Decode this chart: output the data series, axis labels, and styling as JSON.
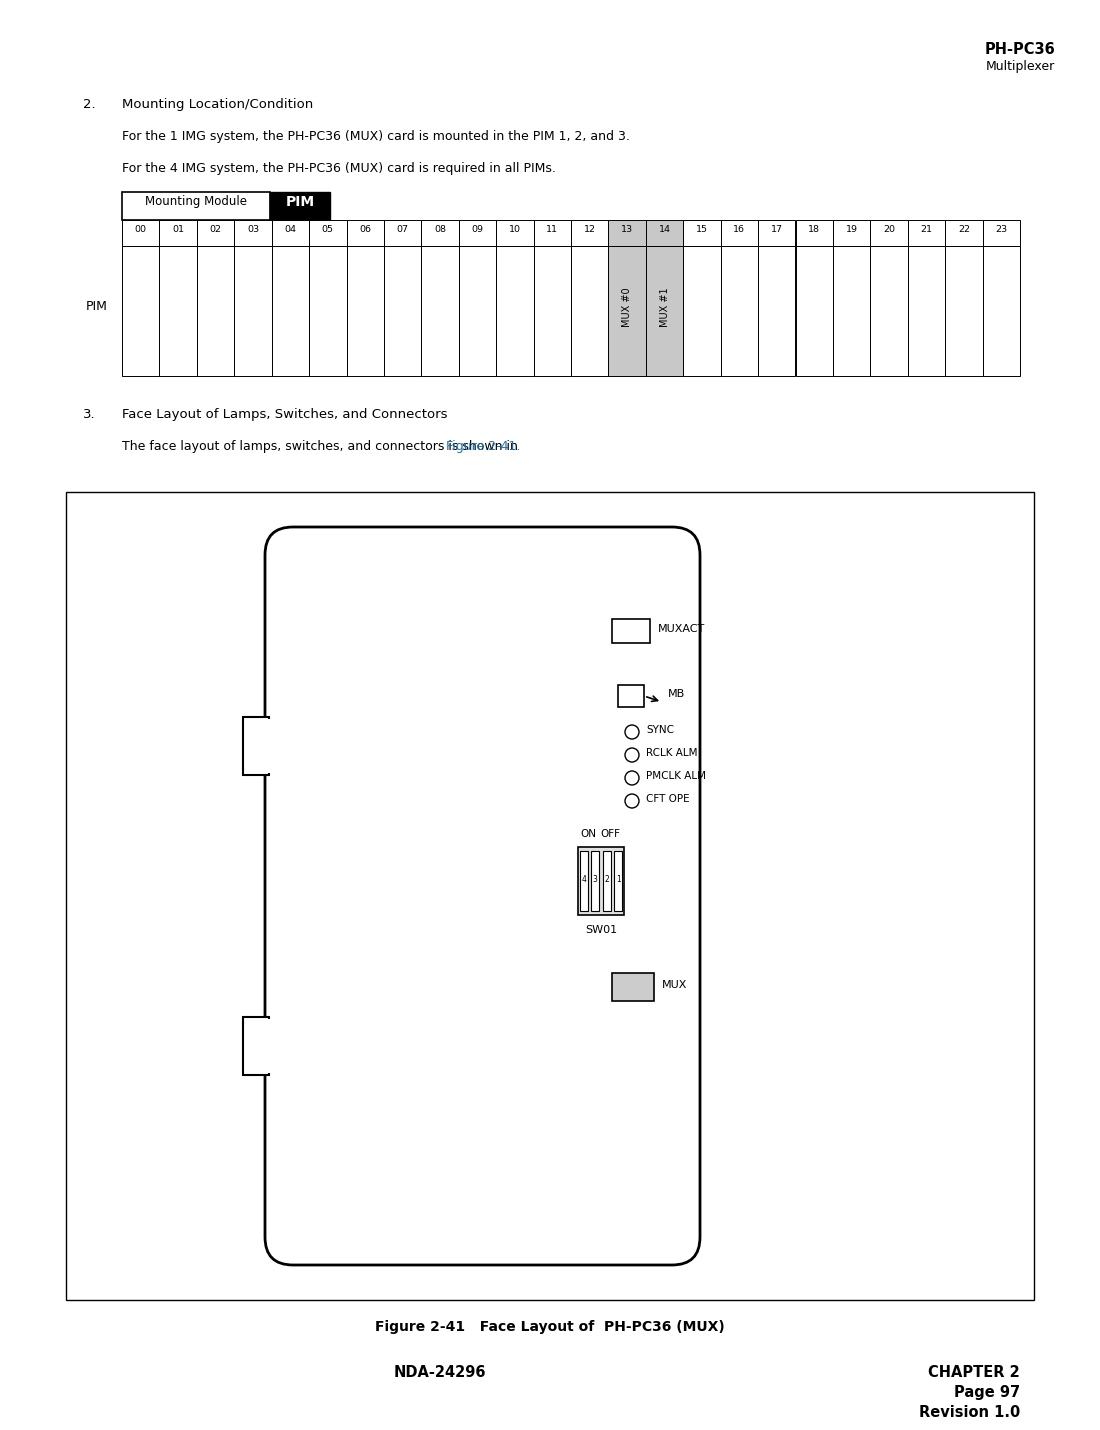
{
  "page_title_bold": "PH-PC36",
  "page_title_sub": "Multiplexer",
  "section2_heading": "2.    Mounting Location/Condition",
  "section2_para1": "For the 1 IMG system, the PH-PC36 (MUX) card is mounted in the PIM 1, 2, and 3.",
  "section2_para2": "For the 4 IMG system, the PH-PC36 (MUX) card is required in all PIMs.",
  "table_label1": "Mounting Module",
  "table_label2": "PIM",
  "table_slots": [
    "00",
    "01",
    "02",
    "03",
    "04",
    "05",
    "06",
    "07",
    "08",
    "09",
    "10",
    "11",
    "12",
    "13",
    "14",
    "15",
    "16",
    "17",
    "18",
    "19",
    "20",
    "21",
    "22",
    "23"
  ],
  "mux0_col": 13,
  "mux1_col": 14,
  "pim_label": "PIM",
  "section3_heading": "3.    Face Layout of Lamps, Switches, and Connectors",
  "section3_para": "The face layout of lamps, switches, and connectors is shown in ",
  "section3_link": "Figure 2-41.",
  "fig_caption": "Figure 2-41   Face Layout of  PH-PC36 (MUX)",
  "footer_left": "NDA-24296",
  "footer_right1": "CHAPTER 2",
  "footer_right2": "Page 97",
  "footer_right3": "Revision 1.0",
  "bg_color": "#ffffff",
  "text_color": "#000000",
  "link_color": "#1a6eb5",
  "pim_bg": "#000000",
  "pim_text": "#ffffff",
  "mux_shaded": "#c8c8c8"
}
